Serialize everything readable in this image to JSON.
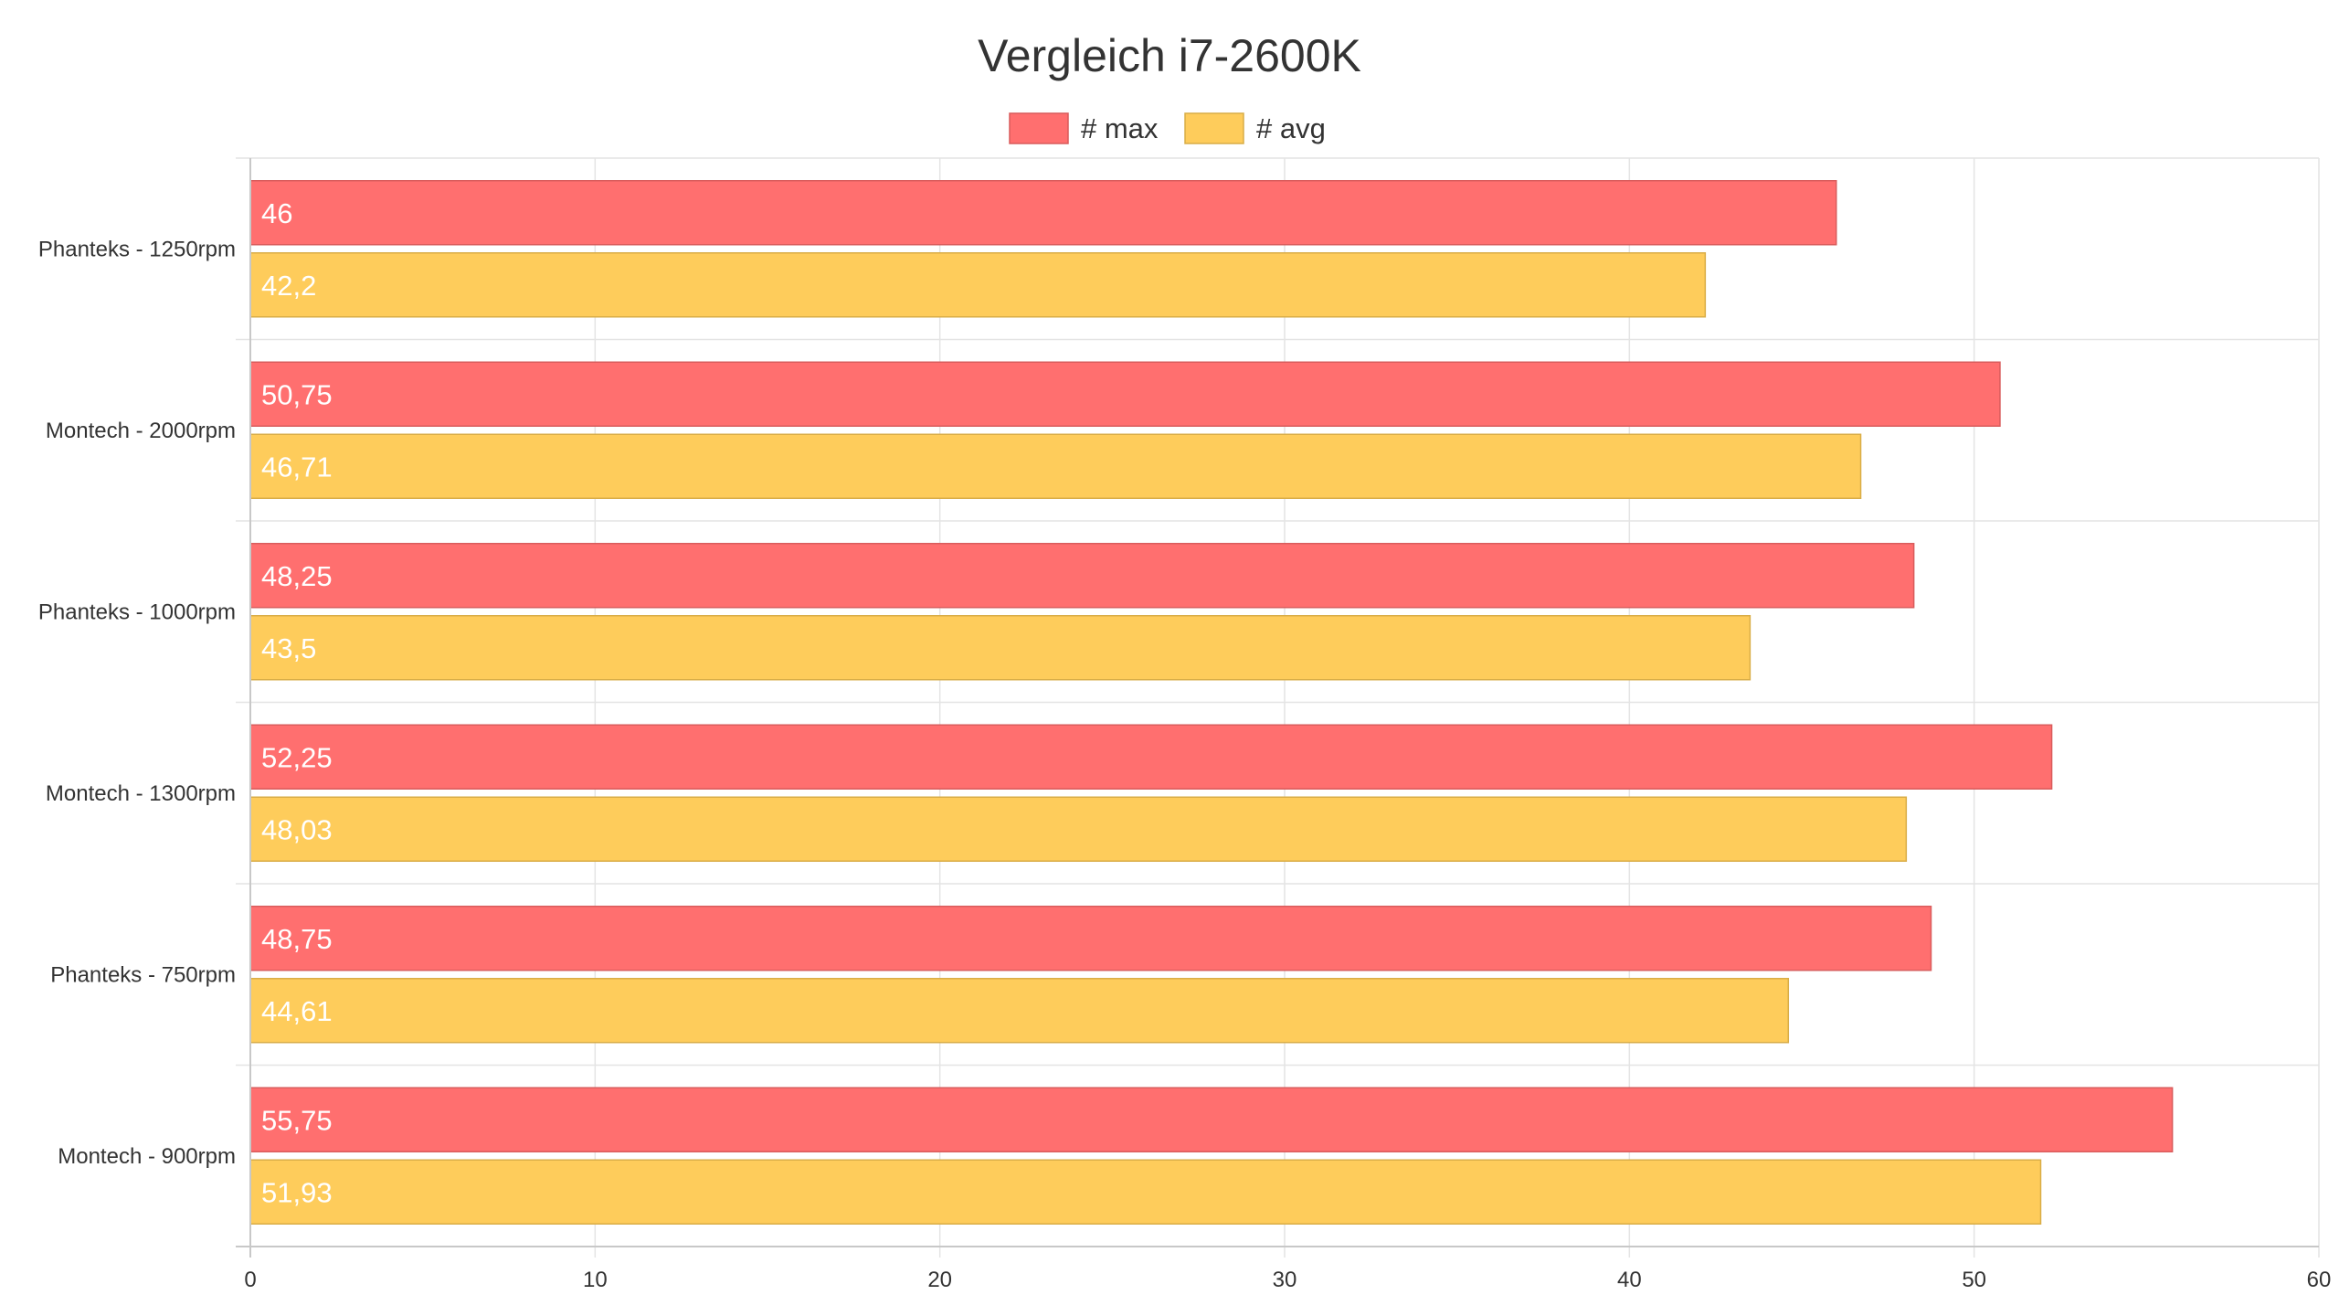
{
  "chart_data": {
    "type": "bar",
    "orientation": "horizontal",
    "title": "Vergleich  i7-2600K",
    "xlabel": "",
    "ylabel": "",
    "xlim": [
      0,
      60
    ],
    "x_ticks": [
      "0",
      "10",
      "20",
      "30",
      "40",
      "50",
      "60"
    ],
    "grid": true,
    "legend_position": "top-center",
    "categories": [
      "Phanteks - 1250rpm",
      "Montech - 2000rpm",
      "Phanteks - 1000rpm",
      "Montech - 1300rpm",
      "Phanteks - 750rpm",
      "Montech - 900rpm"
    ],
    "series": [
      {
        "name": "# max",
        "color": "#ff6f6f",
        "border": "#d95c5c",
        "values": [
          46,
          50.75,
          48.25,
          52.25,
          48.75,
          55.75
        ],
        "labels": [
          "46",
          "50,75",
          "48,25",
          "52,25",
          "48,75",
          "55,75"
        ]
      },
      {
        "name": "# avg",
        "color": "#fecc5b",
        "border": "#d9ad47",
        "values": [
          42.2,
          46.71,
          43.5,
          48.03,
          44.61,
          51.93
        ],
        "labels": [
          "42,2",
          "46,71",
          "43,5",
          "48,03",
          "44,61",
          "51,93"
        ]
      }
    ]
  }
}
